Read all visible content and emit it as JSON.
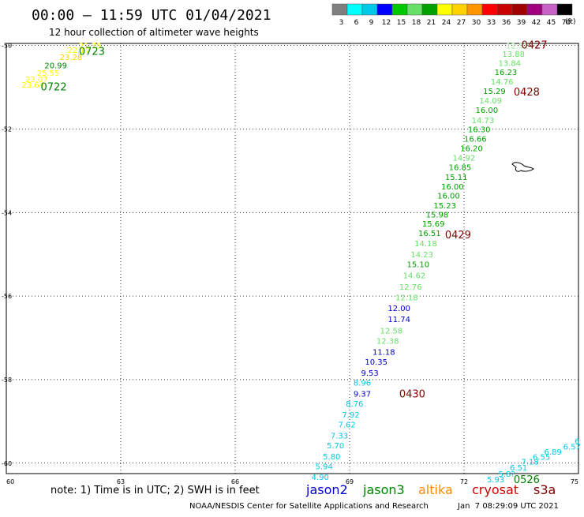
{
  "header": {
    "title": "00:00 – 11:59 UTC 01/04/2021",
    "subtitle": "12 hour collection of altimeter wave heights"
  },
  "scale": {
    "unit": "(ft)",
    "ticks": [
      "3",
      "6",
      "9",
      "12",
      "15",
      "18",
      "21",
      "24",
      "27",
      "30",
      "33",
      "36",
      "39",
      "42",
      "45",
      "70"
    ],
    "colors": [
      "#7f7f7f",
      "#00ffff",
      "#00c8e6",
      "#0000ff",
      "#00c800",
      "#66e066",
      "#00a000",
      "#ffff00",
      "#ffd200",
      "#ff9600",
      "#ff0000",
      "#c80000",
      "#a00000",
      "#a0007f",
      "#c864c8",
      "#000000"
    ]
  },
  "footer": {
    "note": "note: 1) Time is in UTC; 2) SWH is in feet",
    "legend": [
      {
        "name": "jason2",
        "color": "#0000cc"
      },
      {
        "name": "jason3",
        "color": "#008000"
      },
      {
        "name": "altika",
        "color": "#ff8c00"
      },
      {
        "name": "cryosat",
        "color": "#cc0000"
      },
      {
        "name": "s3a",
        "color": "#800000"
      }
    ],
    "credit": "NOAA/NESDIS Center for Satellite Applications and Research",
    "timestamp": "Jan  7 08:29:09 UTC 2021"
  },
  "chart_data": {
    "type": "scatter",
    "title": "00:00 – 11:59 UTC 01/04/2021",
    "xlim": [
      60,
      75
    ],
    "ylim": [
      -60.25,
      -49.95
    ],
    "x_ticks": [
      {
        "value": 60,
        "label": "60"
      },
      {
        "value": 63,
        "label": "63"
      },
      {
        "value": 66,
        "label": "66"
      },
      {
        "value": 69,
        "label": "69"
      },
      {
        "value": 72,
        "label": "72"
      },
      {
        "value": 75,
        "label": "75"
      }
    ],
    "y_ticks": [
      {
        "value": -50,
        "label": "-50"
      },
      {
        "value": -52,
        "label": "-52"
      },
      {
        "value": -54,
        "label": "-54"
      },
      {
        "value": -56,
        "label": "-56"
      },
      {
        "value": -58,
        "label": "-58"
      },
      {
        "value": -60,
        "label": "-60"
      }
    ],
    "grid": true,
    "points": [
      {
        "lon": 61.9,
        "lat": -50.0,
        "label": "21.75",
        "color": "#ffff00"
      },
      {
        "lon": 61.6,
        "lat": -50.1,
        "label": "22.17",
        "color": "#ffff00"
      },
      {
        "lon": 61.4,
        "lat": -50.27,
        "label": "23.28",
        "color": "#ffd200"
      },
      {
        "lon": 61.0,
        "lat": -50.47,
        "label": "20.99",
        "color": "#008000"
      },
      {
        "lon": 60.8,
        "lat": -50.65,
        "label": "25.55",
        "color": "#ffff00"
      },
      {
        "lon": 60.5,
        "lat": -50.8,
        "label": "23.07",
        "color": "#ffff00"
      },
      {
        "lon": 60.4,
        "lat": -50.93,
        "label": "23.64",
        "color": "#ffff00"
      },
      {
        "lon": 73.1,
        "lat": -50.0,
        "label": "12.52",
        "color": "#a0e6a0"
      },
      {
        "lon": 73.0,
        "lat": -50.2,
        "label": "13.88",
        "color": "#66e066"
      },
      {
        "lon": 72.9,
        "lat": -50.41,
        "label": "13.84",
        "color": "#66e066"
      },
      {
        "lon": 72.8,
        "lat": -50.63,
        "label": "16.23",
        "color": "#00a000"
      },
      {
        "lon": 72.7,
        "lat": -50.86,
        "label": "14.76",
        "color": "#66e066"
      },
      {
        "lon": 72.5,
        "lat": -51.08,
        "label": "15.29",
        "color": "#00a000"
      },
      {
        "lon": 72.4,
        "lat": -51.31,
        "label": "14.09",
        "color": "#66e066"
      },
      {
        "lon": 72.3,
        "lat": -51.54,
        "label": "16.00",
        "color": "#00a000"
      },
      {
        "lon": 72.2,
        "lat": -51.78,
        "label": "14.73",
        "color": "#66e066"
      },
      {
        "lon": 72.1,
        "lat": -52.0,
        "label": "16.30",
        "color": "#00a000"
      },
      {
        "lon": 72.0,
        "lat": -52.23,
        "label": "16.66",
        "color": "#00a000"
      },
      {
        "lon": 71.9,
        "lat": -52.45,
        "label": "16.20",
        "color": "#00a000"
      },
      {
        "lon": 71.7,
        "lat": -52.68,
        "label": "14.92",
        "color": "#66e066"
      },
      {
        "lon": 71.6,
        "lat": -52.91,
        "label": "16.85",
        "color": "#00a000"
      },
      {
        "lon": 71.5,
        "lat": -53.14,
        "label": "15.11",
        "color": "#00a000"
      },
      {
        "lon": 71.4,
        "lat": -53.37,
        "label": "16.00",
        "color": "#00a000"
      },
      {
        "lon": 71.3,
        "lat": -53.59,
        "label": "16.00",
        "color": "#00a000"
      },
      {
        "lon": 71.2,
        "lat": -53.82,
        "label": "15.23",
        "color": "#00a000"
      },
      {
        "lon": 71.0,
        "lat": -54.04,
        "label": "15.98",
        "color": "#00a000"
      },
      {
        "lon": 70.9,
        "lat": -54.26,
        "label": "15.69",
        "color": "#00a000"
      },
      {
        "lon": 70.8,
        "lat": -54.49,
        "label": "16.51",
        "color": "#00a000"
      },
      {
        "lon": 70.7,
        "lat": -54.73,
        "label": "14.18",
        "color": "#66e066"
      },
      {
        "lon": 70.6,
        "lat": -55.0,
        "label": "14.23",
        "color": "#66e066"
      },
      {
        "lon": 70.5,
        "lat": -55.23,
        "label": "15.10",
        "color": "#00a000"
      },
      {
        "lon": 70.4,
        "lat": -55.5,
        "label": "14.62",
        "color": "#66e066"
      },
      {
        "lon": 70.3,
        "lat": -55.77,
        "label": "12.76",
        "color": "#66e066"
      },
      {
        "lon": 70.2,
        "lat": -56.03,
        "label": "12.18",
        "color": "#66e066"
      },
      {
        "lon": 70.0,
        "lat": -56.28,
        "label": "12.00",
        "color": "#0000cc"
      },
      {
        "lon": 70.0,
        "lat": -56.55,
        "label": "11.74",
        "color": "#0000cc"
      },
      {
        "lon": 69.8,
        "lat": -56.82,
        "label": "12.58",
        "color": "#66e066"
      },
      {
        "lon": 69.7,
        "lat": -57.07,
        "label": "12.38",
        "color": "#66e066"
      },
      {
        "lon": 69.6,
        "lat": -57.33,
        "label": "11.18",
        "color": "#0000cc"
      },
      {
        "lon": 69.4,
        "lat": -57.57,
        "label": "10.35",
        "color": "#0000cc"
      },
      {
        "lon": 69.3,
        "lat": -57.83,
        "label": "9.53",
        "color": "#0000cc"
      },
      {
        "lon": 69.1,
        "lat": -58.07,
        "label": "8.96",
        "color": "#00c8e6"
      },
      {
        "lon": 69.1,
        "lat": -58.33,
        "label": "9.37",
        "color": "#0000cc"
      },
      {
        "lon": 68.9,
        "lat": -58.57,
        "label": "8.76",
        "color": "#00c8e6"
      },
      {
        "lon": 68.8,
        "lat": -58.83,
        "label": "7.92",
        "color": "#00c8e6"
      },
      {
        "lon": 68.7,
        "lat": -59.07,
        "label": "7.62",
        "color": "#00c8e6"
      },
      {
        "lon": 68.5,
        "lat": -59.33,
        "label": "7.33",
        "color": "#00c8e6"
      },
      {
        "lon": 68.4,
        "lat": -59.57,
        "label": "5.70",
        "color": "#00c8e6"
      },
      {
        "lon": 68.3,
        "lat": -59.83,
        "label": "5.80",
        "color": "#00c8e6"
      },
      {
        "lon": 68.1,
        "lat": -60.07,
        "label": "5.94",
        "color": "#00c8e6"
      },
      {
        "lon": 68.0,
        "lat": -60.33,
        "label": "4.90",
        "color": "#00c8e6"
      },
      {
        "lon": 74.9,
        "lat": -59.47,
        "label": "6",
        "color": "#00c8e6"
      },
      {
        "lon": 74.6,
        "lat": -59.6,
        "label": "6.57",
        "color": "#00c8e6"
      },
      {
        "lon": 74.1,
        "lat": -59.72,
        "label": "6.89",
        "color": "#00c8e6"
      },
      {
        "lon": 73.8,
        "lat": -59.84,
        "label": "6.55",
        "color": "#00c8e6"
      },
      {
        "lon": 73.5,
        "lat": -59.96,
        "label": "7.18",
        "color": "#00c8e6"
      },
      {
        "lon": 73.2,
        "lat": -60.1,
        "label": "6.51",
        "color": "#00c8e6"
      },
      {
        "lon": 72.9,
        "lat": -60.25,
        "label": "5.8?",
        "color": "#00c8e6"
      },
      {
        "lon": 72.6,
        "lat": -60.38,
        "label": "5.93",
        "color": "#00c8e6"
      }
    ],
    "time_labels": [
      {
        "lon": 61.9,
        "lat": -50.13,
        "label": "0723",
        "color": "#008000"
      },
      {
        "lon": 60.9,
        "lat": -50.98,
        "label": "0722",
        "color": "#008000"
      },
      {
        "lon": 73.5,
        "lat": -49.98,
        "label": "0427",
        "color": "#800000"
      },
      {
        "lon": 73.3,
        "lat": -51.1,
        "label": "0428",
        "color": "#800000"
      },
      {
        "lon": 71.5,
        "lat": -54.52,
        "label": "0429",
        "color": "#800000"
      },
      {
        "lon": 70.3,
        "lat": -58.33,
        "label": "0430",
        "color": "#800000"
      },
      {
        "lon": 73.3,
        "lat": -60.38,
        "label": "0526",
        "color": "#008000"
      }
    ]
  }
}
